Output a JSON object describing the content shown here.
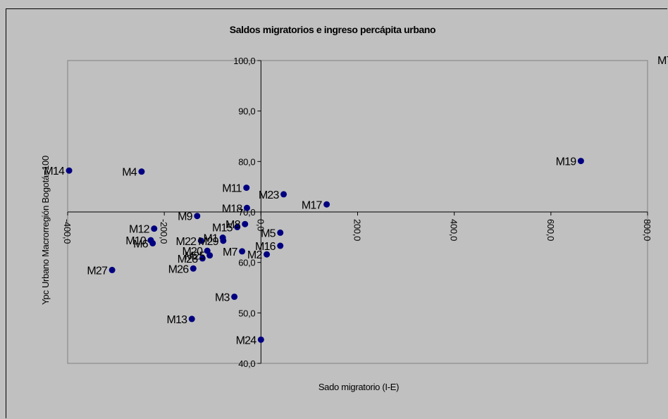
{
  "chart_data": {
    "type": "scatter",
    "title": "Saldos migratorios e ingreso percápita urbano",
    "xlabel": "Sado migratorio (I-E)",
    "ylabel": "Ypc Urbano Macrorregión Bogotá=100",
    "xlim": [
      -400,
      800
    ],
    "ylim": [
      40,
      100
    ],
    "x_crosses_y_at": 70,
    "y_crosses_x_at": 0,
    "x_ticks": [
      "-400,0",
      "-200,0",
      "0,0",
      "200,0",
      "400,0",
      "600,0",
      "800,0"
    ],
    "y_ticks": [
      "40,0",
      "50,0",
      "60,0",
      "70,0",
      "80,0",
      "90,0",
      "100,0"
    ],
    "grid": false,
    "legend": "none",
    "plot_area_color": "#c0c0c0",
    "marker_color": "#000080",
    "points": [
      {
        "label": "M14",
        "x": -397,
        "y": 78.2
      },
      {
        "label": "M4",
        "x": -247,
        "y": 78.0
      },
      {
        "label": "M19",
        "x": 662,
        "y": 80.1
      },
      {
        "label": "M11",
        "x": -30,
        "y": 74.8
      },
      {
        "label": "M23",
        "x": 47,
        "y": 73.5
      },
      {
        "label": "M17",
        "x": 136,
        "y": 71.5
      },
      {
        "label": "M18",
        "x": -29,
        "y": 70.8
      },
      {
        "label": "M9",
        "x": -132,
        "y": 69.2
      },
      {
        "label": "M8",
        "x": -33,
        "y": 67.6
      },
      {
        "label": "M15",
        "x": -49,
        "y": 67.0
      },
      {
        "label": "M12",
        "x": -221,
        "y": 66.7
      },
      {
        "label": "M5",
        "x": 40,
        "y": 65.9
      },
      {
        "label": "M1",
        "x": -79,
        "y": 64.9
      },
      {
        "label": "M22",
        "x": -124,
        "y": 64.3
      },
      {
        "label": "M29",
        "x": -78,
        "y": 64.3
      },
      {
        "label": "M10",
        "x": -228,
        "y": 64.4
      },
      {
        "label": "M6",
        "x": -224,
        "y": 63.8
      },
      {
        "label": "M16",
        "x": 40,
        "y": 63.3
      },
      {
        "label": "M20",
        "x": -111,
        "y": 62.3
      },
      {
        "label": "M7",
        "x": -39,
        "y": 62.2
      },
      {
        "label": "M2",
        "x": 12,
        "y": 61.6
      },
      {
        "label": "M25",
        "x": -106,
        "y": 61.4
      },
      {
        "label": "M28",
        "x": -121,
        "y": 60.8
      },
      {
        "label": "M26",
        "x": -140,
        "y": 58.8
      },
      {
        "label": "M27",
        "x": -308,
        "y": 58.5
      },
      {
        "label": "M3",
        "x": -55,
        "y": 53.2
      },
      {
        "label": "M13",
        "x": -143,
        "y": 48.8
      },
      {
        "label": "M24",
        "x": 0,
        "y": 44.7
      }
    ],
    "offscale_label": "M7"
  }
}
